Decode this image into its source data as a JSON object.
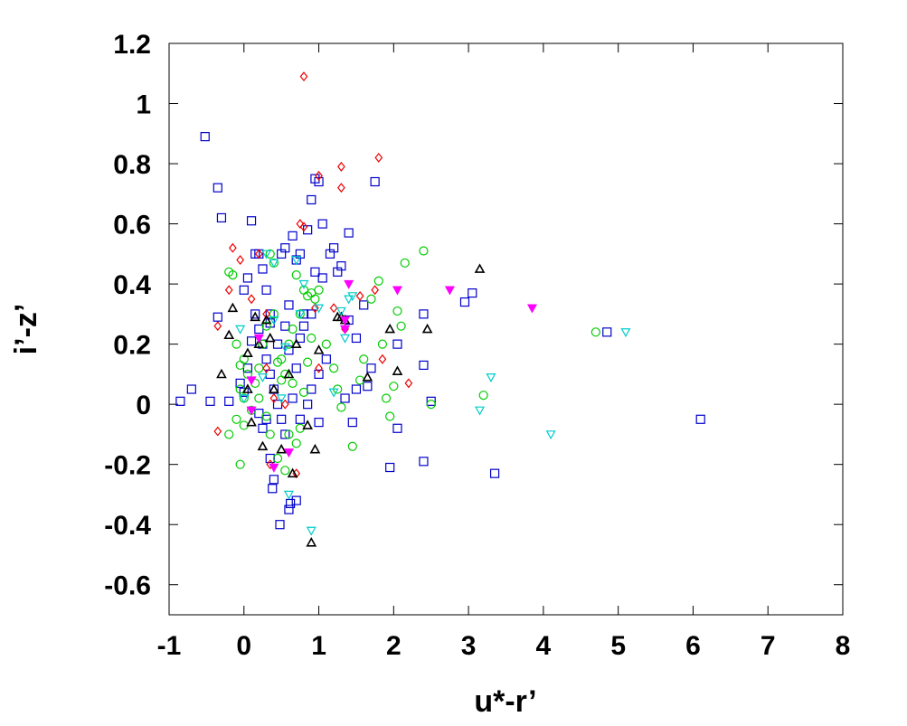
{
  "chart_data": {
    "type": "scatter",
    "title": "",
    "xlabel": "u*-r’",
    "ylabel": "i’-z’",
    "xlim": [
      -1,
      8
    ],
    "ylim": [
      -0.7,
      1.2
    ],
    "x_ticks": [
      "-1",
      "0",
      "1",
      "2",
      "3",
      "4",
      "5",
      "6",
      "7",
      "8"
    ],
    "y_ticks": [
      "-0.6",
      "-0.4",
      "-0.2",
      "0",
      "0.2",
      "0.4",
      "0.6",
      "0.8",
      "1",
      "1.2"
    ],
    "grid": false,
    "legend": "none",
    "series": [
      {
        "marker": "square",
        "color": "#0000cc",
        "points": [
          [
            -0.85,
            0.01
          ],
          [
            -0.7,
            0.05
          ],
          [
            -0.52,
            0.89
          ],
          [
            -0.45,
            0.01
          ],
          [
            -0.35,
            0.72
          ],
          [
            -0.3,
            0.62
          ],
          [
            -0.35,
            0.29
          ],
          [
            -0.2,
            0.01
          ],
          [
            -0.05,
            0.07
          ],
          [
            0.0,
            0.38
          ],
          [
            0.05,
            0.42
          ],
          [
            0.1,
            0.61
          ],
          [
            0.15,
            0.5
          ],
          [
            0.2,
            0.5
          ],
          [
            0.25,
            0.45
          ],
          [
            0.3,
            0.38
          ],
          [
            0.35,
            0.3
          ],
          [
            0.2,
            0.25
          ],
          [
            0.25,
            0.2
          ],
          [
            0.3,
            0.15
          ],
          [
            0.35,
            0.1
          ],
          [
            0.4,
            0.05
          ],
          [
            0.45,
            0.0
          ],
          [
            0.5,
            -0.05
          ],
          [
            0.55,
            -0.1
          ],
          [
            0.35,
            -0.18
          ],
          [
            0.4,
            -0.25
          ],
          [
            0.38,
            -0.28
          ],
          [
            0.48,
            -0.4
          ],
          [
            0.6,
            -0.35
          ],
          [
            0.7,
            -0.32
          ],
          [
            0.62,
            -0.33
          ],
          [
            0.5,
            0.5
          ],
          [
            0.55,
            0.52
          ],
          [
            0.65,
            0.56
          ],
          [
            0.7,
            0.48
          ],
          [
            0.75,
            0.5
          ],
          [
            0.85,
            0.58
          ],
          [
            0.9,
            0.68
          ],
          [
            0.95,
            0.75
          ],
          [
            1.0,
            0.74
          ],
          [
            1.05,
            0.6
          ],
          [
            0.95,
            0.44
          ],
          [
            1.05,
            0.42
          ],
          [
            1.15,
            0.5
          ],
          [
            1.2,
            0.52
          ],
          [
            1.25,
            0.44
          ],
          [
            1.3,
            0.46
          ],
          [
            1.4,
            0.57
          ],
          [
            1.6,
            0.33
          ],
          [
            1.75,
            0.74
          ],
          [
            1.7,
            0.12
          ],
          [
            1.65,
            0.06
          ],
          [
            1.5,
            0.05
          ],
          [
            1.35,
            0.02
          ],
          [
            1.45,
            -0.06
          ],
          [
            1.5,
            0.22
          ],
          [
            1.4,
            0.28
          ],
          [
            1.1,
            0.15
          ],
          [
            1.0,
            0.1
          ],
          [
            0.9,
            0.05
          ],
          [
            0.85,
            0.0
          ],
          [
            0.75,
            -0.05
          ],
          [
            1.0,
            -0.06
          ],
          [
            0.8,
            0.3
          ],
          [
            0.9,
            0.3
          ],
          [
            0.6,
            0.33
          ],
          [
            0.55,
            0.26
          ],
          [
            0.45,
            0.2
          ],
          [
            0.35,
            0.27
          ],
          [
            0.15,
            0.3
          ],
          [
            0.1,
            0.21
          ],
          [
            0.05,
            0.12
          ],
          [
            0.0,
            0.04
          ],
          [
            0.2,
            -0.03
          ],
          [
            0.25,
            -0.08
          ],
          [
            0.3,
            -0.05
          ],
          [
            0.65,
            0.02
          ],
          [
            0.6,
            0.18
          ],
          [
            0.7,
            0.12
          ],
          [
            0.75,
            0.22
          ],
          [
            0.8,
            0.26
          ],
          [
            1.95,
            -0.21
          ],
          [
            2.05,
            -0.08
          ],
          [
            2.05,
            0.2
          ],
          [
            2.4,
            -0.19
          ],
          [
            2.4,
            0.3
          ],
          [
            2.4,
            0.13
          ],
          [
            2.5,
            0.01
          ],
          [
            2.95,
            0.34
          ],
          [
            3.05,
            0.37
          ],
          [
            3.35,
            -0.23
          ],
          [
            4.85,
            0.24
          ],
          [
            6.1,
            -0.05
          ]
        ]
      },
      {
        "marker": "circle",
        "color": "#00cc00",
        "points": [
          [
            -0.2,
            0.44
          ],
          [
            -0.15,
            0.43
          ],
          [
            -0.1,
            0.2
          ],
          [
            -0.05,
            0.13
          ],
          [
            0.0,
            0.15
          ],
          [
            -0.05,
            0.05
          ],
          [
            0.0,
            0.02
          ],
          [
            -0.1,
            -0.05
          ],
          [
            -0.2,
            -0.1
          ],
          [
            -0.05,
            -0.2
          ],
          [
            0.0,
            -0.07
          ],
          [
            0.05,
            0.1
          ],
          [
            0.1,
            -0.02
          ],
          [
            0.15,
            0.07
          ],
          [
            0.2,
            0.12
          ],
          [
            0.25,
            0.2
          ],
          [
            0.3,
            0.26
          ],
          [
            0.35,
            0.5
          ],
          [
            0.4,
            0.47
          ],
          [
            0.45,
            0.14
          ],
          [
            0.5,
            0.08
          ],
          [
            0.55,
            0.1
          ],
          [
            0.6,
            0.2
          ],
          [
            0.65,
            0.25
          ],
          [
            0.7,
            0.43
          ],
          [
            0.75,
            0.3
          ],
          [
            0.8,
            0.38
          ],
          [
            0.85,
            0.36
          ],
          [
            0.9,
            0.37
          ],
          [
            0.95,
            0.35
          ],
          [
            1.0,
            0.38
          ],
          [
            0.9,
            0.22
          ],
          [
            0.85,
            0.14
          ],
          [
            0.8,
            0.04
          ],
          [
            0.75,
            -0.08
          ],
          [
            0.7,
            -0.13
          ],
          [
            0.6,
            -0.1
          ],
          [
            0.55,
            -0.22
          ],
          [
            0.45,
            -0.18
          ],
          [
            0.35,
            -0.1
          ],
          [
            0.3,
            -0.04
          ],
          [
            1.1,
            0.2
          ],
          [
            1.2,
            0.12
          ],
          [
            1.25,
            0.05
          ],
          [
            1.3,
            -0.01
          ],
          [
            1.45,
            -0.14
          ],
          [
            1.55,
            0.08
          ],
          [
            1.6,
            0.15
          ],
          [
            1.7,
            0.35
          ],
          [
            1.8,
            0.41
          ],
          [
            1.85,
            0.2
          ],
          [
            1.9,
            0.02
          ],
          [
            1.95,
            -0.04
          ],
          [
            2.0,
            0.06
          ],
          [
            2.05,
            0.31
          ],
          [
            2.1,
            0.26
          ],
          [
            2.15,
            0.47
          ],
          [
            2.4,
            0.51
          ],
          [
            2.5,
            0.0
          ],
          [
            3.2,
            0.03
          ],
          [
            4.7,
            0.24
          ],
          [
            0.4,
            0.3
          ],
          [
            0.5,
            0.15
          ],
          [
            0.2,
            0.02
          ],
          [
            0.65,
            0.07
          ]
        ]
      },
      {
        "marker": "diamond",
        "color": "#ee0000",
        "points": [
          [
            -0.35,
            -0.09
          ],
          [
            -0.35,
            0.26
          ],
          [
            -0.2,
            0.38
          ],
          [
            -0.15,
            0.52
          ],
          [
            -0.05,
            0.48
          ],
          [
            0.1,
            0.35
          ],
          [
            0.2,
            0.5
          ],
          [
            0.3,
            0.3
          ],
          [
            0.35,
            -0.2
          ],
          [
            0.4,
            0.02
          ],
          [
            0.75,
            0.6
          ],
          [
            0.8,
            0.59
          ],
          [
            0.8,
            1.09
          ],
          [
            0.95,
            0.32
          ],
          [
            1.0,
            0.76
          ],
          [
            1.3,
            0.79
          ],
          [
            1.3,
            0.72
          ],
          [
            1.35,
            0.25
          ],
          [
            1.55,
            0.36
          ],
          [
            1.75,
            0.38
          ],
          [
            1.8,
            0.82
          ],
          [
            1.85,
            0.15
          ],
          [
            2.2,
            0.07
          ],
          [
            0.7,
            -0.23
          ],
          [
            1.0,
            0.12
          ],
          [
            1.2,
            0.32
          ],
          [
            0.55,
            0.0
          ],
          [
            0.3,
            0.12
          ]
        ]
      },
      {
        "marker": "triangle-up",
        "color": "#000000",
        "points": [
          [
            -0.3,
            0.1
          ],
          [
            -0.2,
            0.23
          ],
          [
            -0.15,
            0.32
          ],
          [
            0.05,
            0.05
          ],
          [
            0.05,
            0.17
          ],
          [
            0.1,
            -0.06
          ],
          [
            0.15,
            0.29
          ],
          [
            0.2,
            0.2
          ],
          [
            0.25,
            -0.14
          ],
          [
            0.3,
            0.28
          ],
          [
            0.35,
            0.22
          ],
          [
            0.5,
            -0.15
          ],
          [
            0.65,
            -0.23
          ],
          [
            0.7,
            0.2
          ],
          [
            0.85,
            -0.07
          ],
          [
            0.9,
            -0.46
          ],
          [
            0.95,
            -0.15
          ],
          [
            1.0,
            0.18
          ],
          [
            1.25,
            0.29
          ],
          [
            1.3,
            0.29
          ],
          [
            1.35,
            0.28
          ],
          [
            1.65,
            0.09
          ],
          [
            1.95,
            0.25
          ],
          [
            2.05,
            0.11
          ],
          [
            2.45,
            0.25
          ],
          [
            3.15,
            0.45
          ],
          [
            0.6,
            0.1
          ],
          [
            0.4,
            0.05
          ]
        ]
      },
      {
        "marker": "triangle-down",
        "color": "#00cccc",
        "points": [
          [
            -0.05,
            0.25
          ],
          [
            0.0,
            0.02
          ],
          [
            0.3,
            0.5
          ],
          [
            0.4,
            0.47
          ],
          [
            0.4,
            0.28
          ],
          [
            0.55,
            0.19
          ],
          [
            0.6,
            -0.3
          ],
          [
            0.7,
            0.48
          ],
          [
            0.75,
            0.3
          ],
          [
            0.8,
            0.4
          ],
          [
            0.9,
            -0.42
          ],
          [
            1.0,
            0.32
          ],
          [
            1.2,
            0.04
          ],
          [
            1.3,
            0.31
          ],
          [
            1.35,
            0.22
          ],
          [
            1.4,
            0.35
          ],
          [
            1.45,
            0.36
          ],
          [
            3.15,
            -0.02
          ],
          [
            3.3,
            0.09
          ],
          [
            4.1,
            -0.1
          ],
          [
            5.1,
            0.24
          ],
          [
            0.5,
            0.02
          ],
          [
            0.25,
            0.09
          ]
        ]
      },
      {
        "marker": "triangle-down-filled",
        "color": "#ff00ff",
        "points": [
          [
            0.1,
            -0.02
          ],
          [
            0.1,
            0.08
          ],
          [
            0.2,
            0.22
          ],
          [
            0.4,
            -0.21
          ],
          [
            0.6,
            -0.16
          ],
          [
            1.35,
            0.28
          ],
          [
            1.4,
            0.4
          ],
          [
            1.35,
            0.25
          ],
          [
            2.05,
            0.38
          ],
          [
            2.75,
            0.38
          ],
          [
            3.85,
            0.32
          ]
        ]
      }
    ]
  }
}
